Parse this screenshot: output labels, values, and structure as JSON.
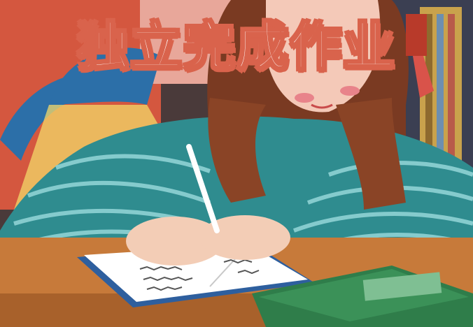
{
  "title": "独立完成作业",
  "colors": {
    "title_fill": "#ffffff",
    "title_outline": "#d9634c",
    "sweater": "#2f8c8f",
    "sweater_stripe": "#8fd2d4",
    "hair": "#7a3a22",
    "desk": "#c77a3a",
    "book_green": "#2f7d4a",
    "notebook_cover": "#2e5f9e",
    "lamp": "#2c6fa8",
    "lamp_light": "#f3d86a",
    "wall_left": "#d4573f"
  }
}
